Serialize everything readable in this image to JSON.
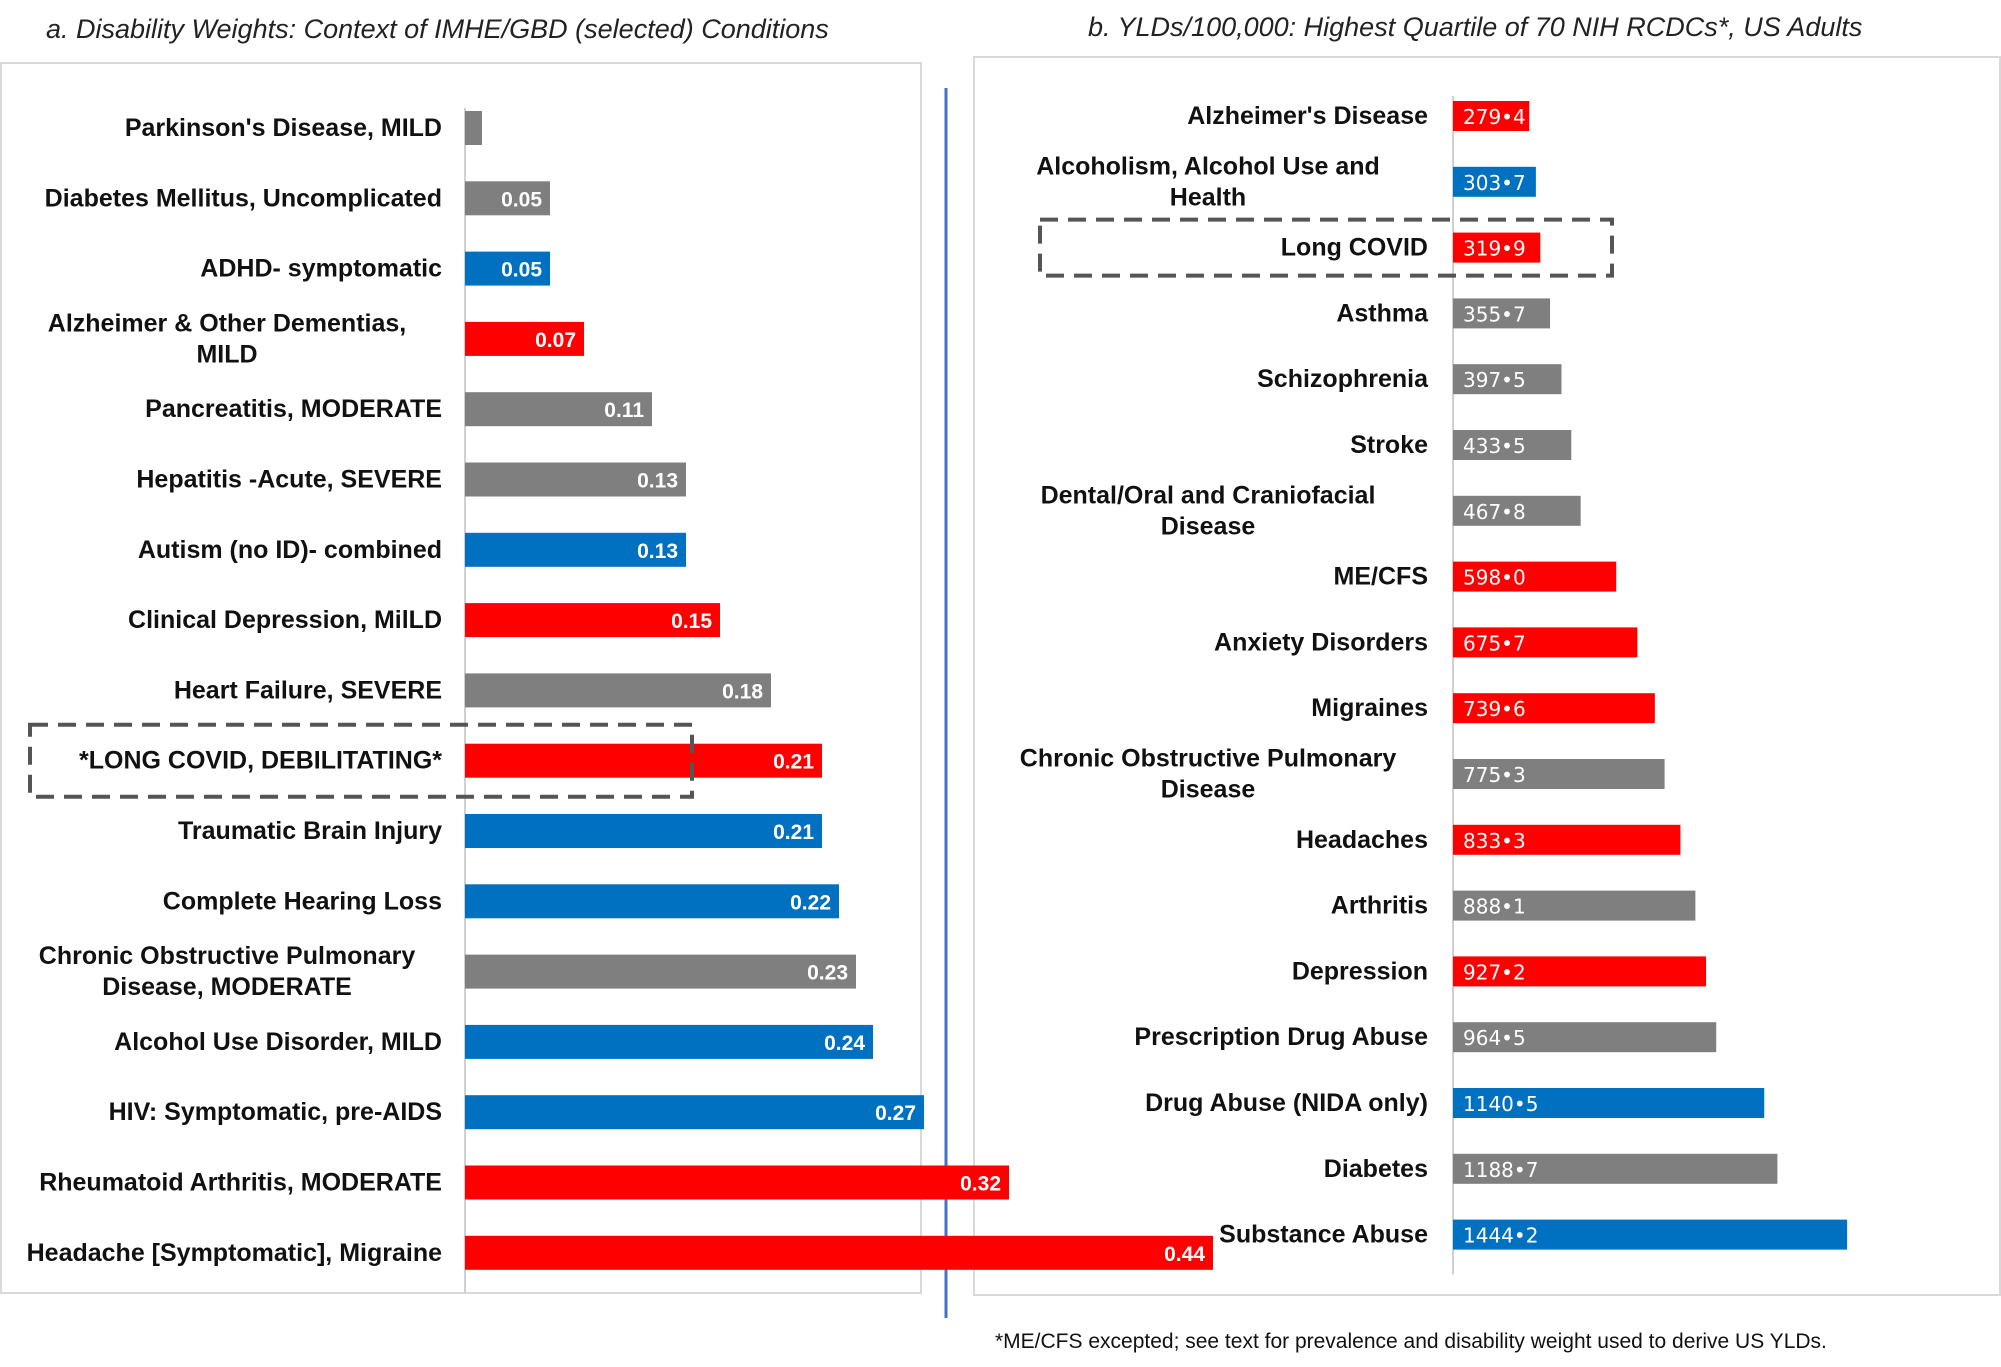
{
  "colors": {
    "red": "#ff0000",
    "gray": "#7f7f7f",
    "blue": "#0070c0"
  },
  "chart_data": [
    {
      "type": "bar",
      "orientation": "horizontal",
      "title": "a. Disability Weights: Context of IMHE/GBD (selected) Conditions",
      "xlim": [
        0,
        0.5
      ],
      "highlight": "*LONG COVID, DEBILITATING*",
      "categories": [
        {
          "label": "Parkinson's Disease, MILD",
          "value": 0.01,
          "value_label": "",
          "color": "gray"
        },
        {
          "label": "Diabetes Mellitus, Uncomplicated",
          "value": 0.05,
          "value_label": "0.05",
          "color": "gray"
        },
        {
          "label": "ADHD- symptomatic",
          "value": 0.05,
          "value_label": "0.05",
          "color": "blue"
        },
        {
          "label": "Alzheimer & Other Dementias, MILD",
          "value": 0.07,
          "value_label": "0.07",
          "color": "red"
        },
        {
          "label": "Pancreatitis, MODERATE",
          "value": 0.11,
          "value_label": "0.11",
          "color": "gray"
        },
        {
          "label": "Hepatitis -Acute, SEVERE",
          "value": 0.13,
          "value_label": "0.13",
          "color": "gray"
        },
        {
          "label": "Autism (no ID)- combined",
          "value": 0.13,
          "value_label": "0.13",
          "color": "blue"
        },
        {
          "label": "Clinical Depression, MilLD",
          "value": 0.15,
          "value_label": "0.15",
          "color": "red"
        },
        {
          "label": "Heart Failure, SEVERE",
          "value": 0.18,
          "value_label": "0.18",
          "color": "gray"
        },
        {
          "label": "*LONG COVID, DEBILITATING*",
          "value": 0.21,
          "value_label": "0.21",
          "color": "red"
        },
        {
          "label": "Traumatic Brain Injury",
          "value": 0.21,
          "value_label": "0.21",
          "color": "blue"
        },
        {
          "label": "Complete Hearing Loss",
          "value": 0.22,
          "value_label": "0.22",
          "color": "blue"
        },
        {
          "label": "Chronic Obstructive Pulmonary Disease, MODERATE",
          "value": 0.23,
          "value_label": "0.23",
          "color": "gray"
        },
        {
          "label": "Alcohol Use Disorder, MILD",
          "value": 0.24,
          "value_label": "0.24",
          "color": "blue"
        },
        {
          "label": "HIV: Symptomatic, pre-AIDS",
          "value": 0.27,
          "value_label": "0.27",
          "color": "blue"
        },
        {
          "label": "Rheumatoid Arthritis, MODERATE",
          "value": 0.32,
          "value_label": "0.32",
          "color": "red"
        },
        {
          "label": "Headache [Symptomatic], Migraine",
          "value": 0.44,
          "value_label": "0.44",
          "color": "red"
        }
      ]
    },
    {
      "type": "bar",
      "orientation": "horizontal",
      "title": "b. YLDs/100,000: Highest Quartile of 70 NIH RCDCs*, US Adults",
      "xlim": [
        0,
        1550
      ],
      "highlight": "Long COVID",
      "categories": [
        {
          "label": "Alzheimer's Disease",
          "value": 279.4,
          "value_label": "279•4",
          "color": "red"
        },
        {
          "label": "Alcoholism, Alcohol Use and Health",
          "value": 303.7,
          "value_label": "303•7",
          "color": "blue"
        },
        {
          "label": "Long COVID",
          "value": 319.9,
          "value_label": "319•9",
          "color": "red"
        },
        {
          "label": "Asthma",
          "value": 355.7,
          "value_label": "355•7",
          "color": "gray"
        },
        {
          "label": "Schizophrenia",
          "value": 397.5,
          "value_label": "397•5",
          "color": "gray"
        },
        {
          "label": "Stroke",
          "value": 433.5,
          "value_label": "433•5",
          "color": "gray"
        },
        {
          "label": "Dental/Oral and Craniofacial Disease",
          "value": 467.8,
          "value_label": "467•8",
          "color": "gray"
        },
        {
          "label": "ME/CFS",
          "value": 598.0,
          "value_label": "598•0",
          "color": "red"
        },
        {
          "label": "Anxiety Disorders",
          "value": 675.7,
          "value_label": "675•7",
          "color": "red"
        },
        {
          "label": "Migraines",
          "value": 739.6,
          "value_label": "739•6",
          "color": "red"
        },
        {
          "label": "Chronic Obstructive Pulmonary Disease",
          "value": 775.3,
          "value_label": "775•3",
          "color": "gray"
        },
        {
          "label": "Headaches",
          "value": 833.3,
          "value_label": "833•3",
          "color": "red"
        },
        {
          "label": "Arthritis",
          "value": 888.1,
          "value_label": "888•1",
          "color": "gray"
        },
        {
          "label": "Depression",
          "value": 927.2,
          "value_label": "927•2",
          "color": "red"
        },
        {
          "label": "Prescription Drug Abuse",
          "value": 964.5,
          "value_label": "964•5",
          "color": "gray"
        },
        {
          "label": "Drug Abuse (NIDA only)",
          "value": 1140.5,
          "value_label": "1140•5",
          "color": "blue"
        },
        {
          "label": "Diabetes",
          "value": 1188.7,
          "value_label": "1188•7",
          "color": "gray"
        },
        {
          "label": "Substance Abuse",
          "value": 1444.2,
          "value_label": "1444•2",
          "color": "blue"
        }
      ]
    }
  ],
  "footnote": "*ME/CFS excepted; see text for prevalence and disability weight used to derive US YLDs."
}
